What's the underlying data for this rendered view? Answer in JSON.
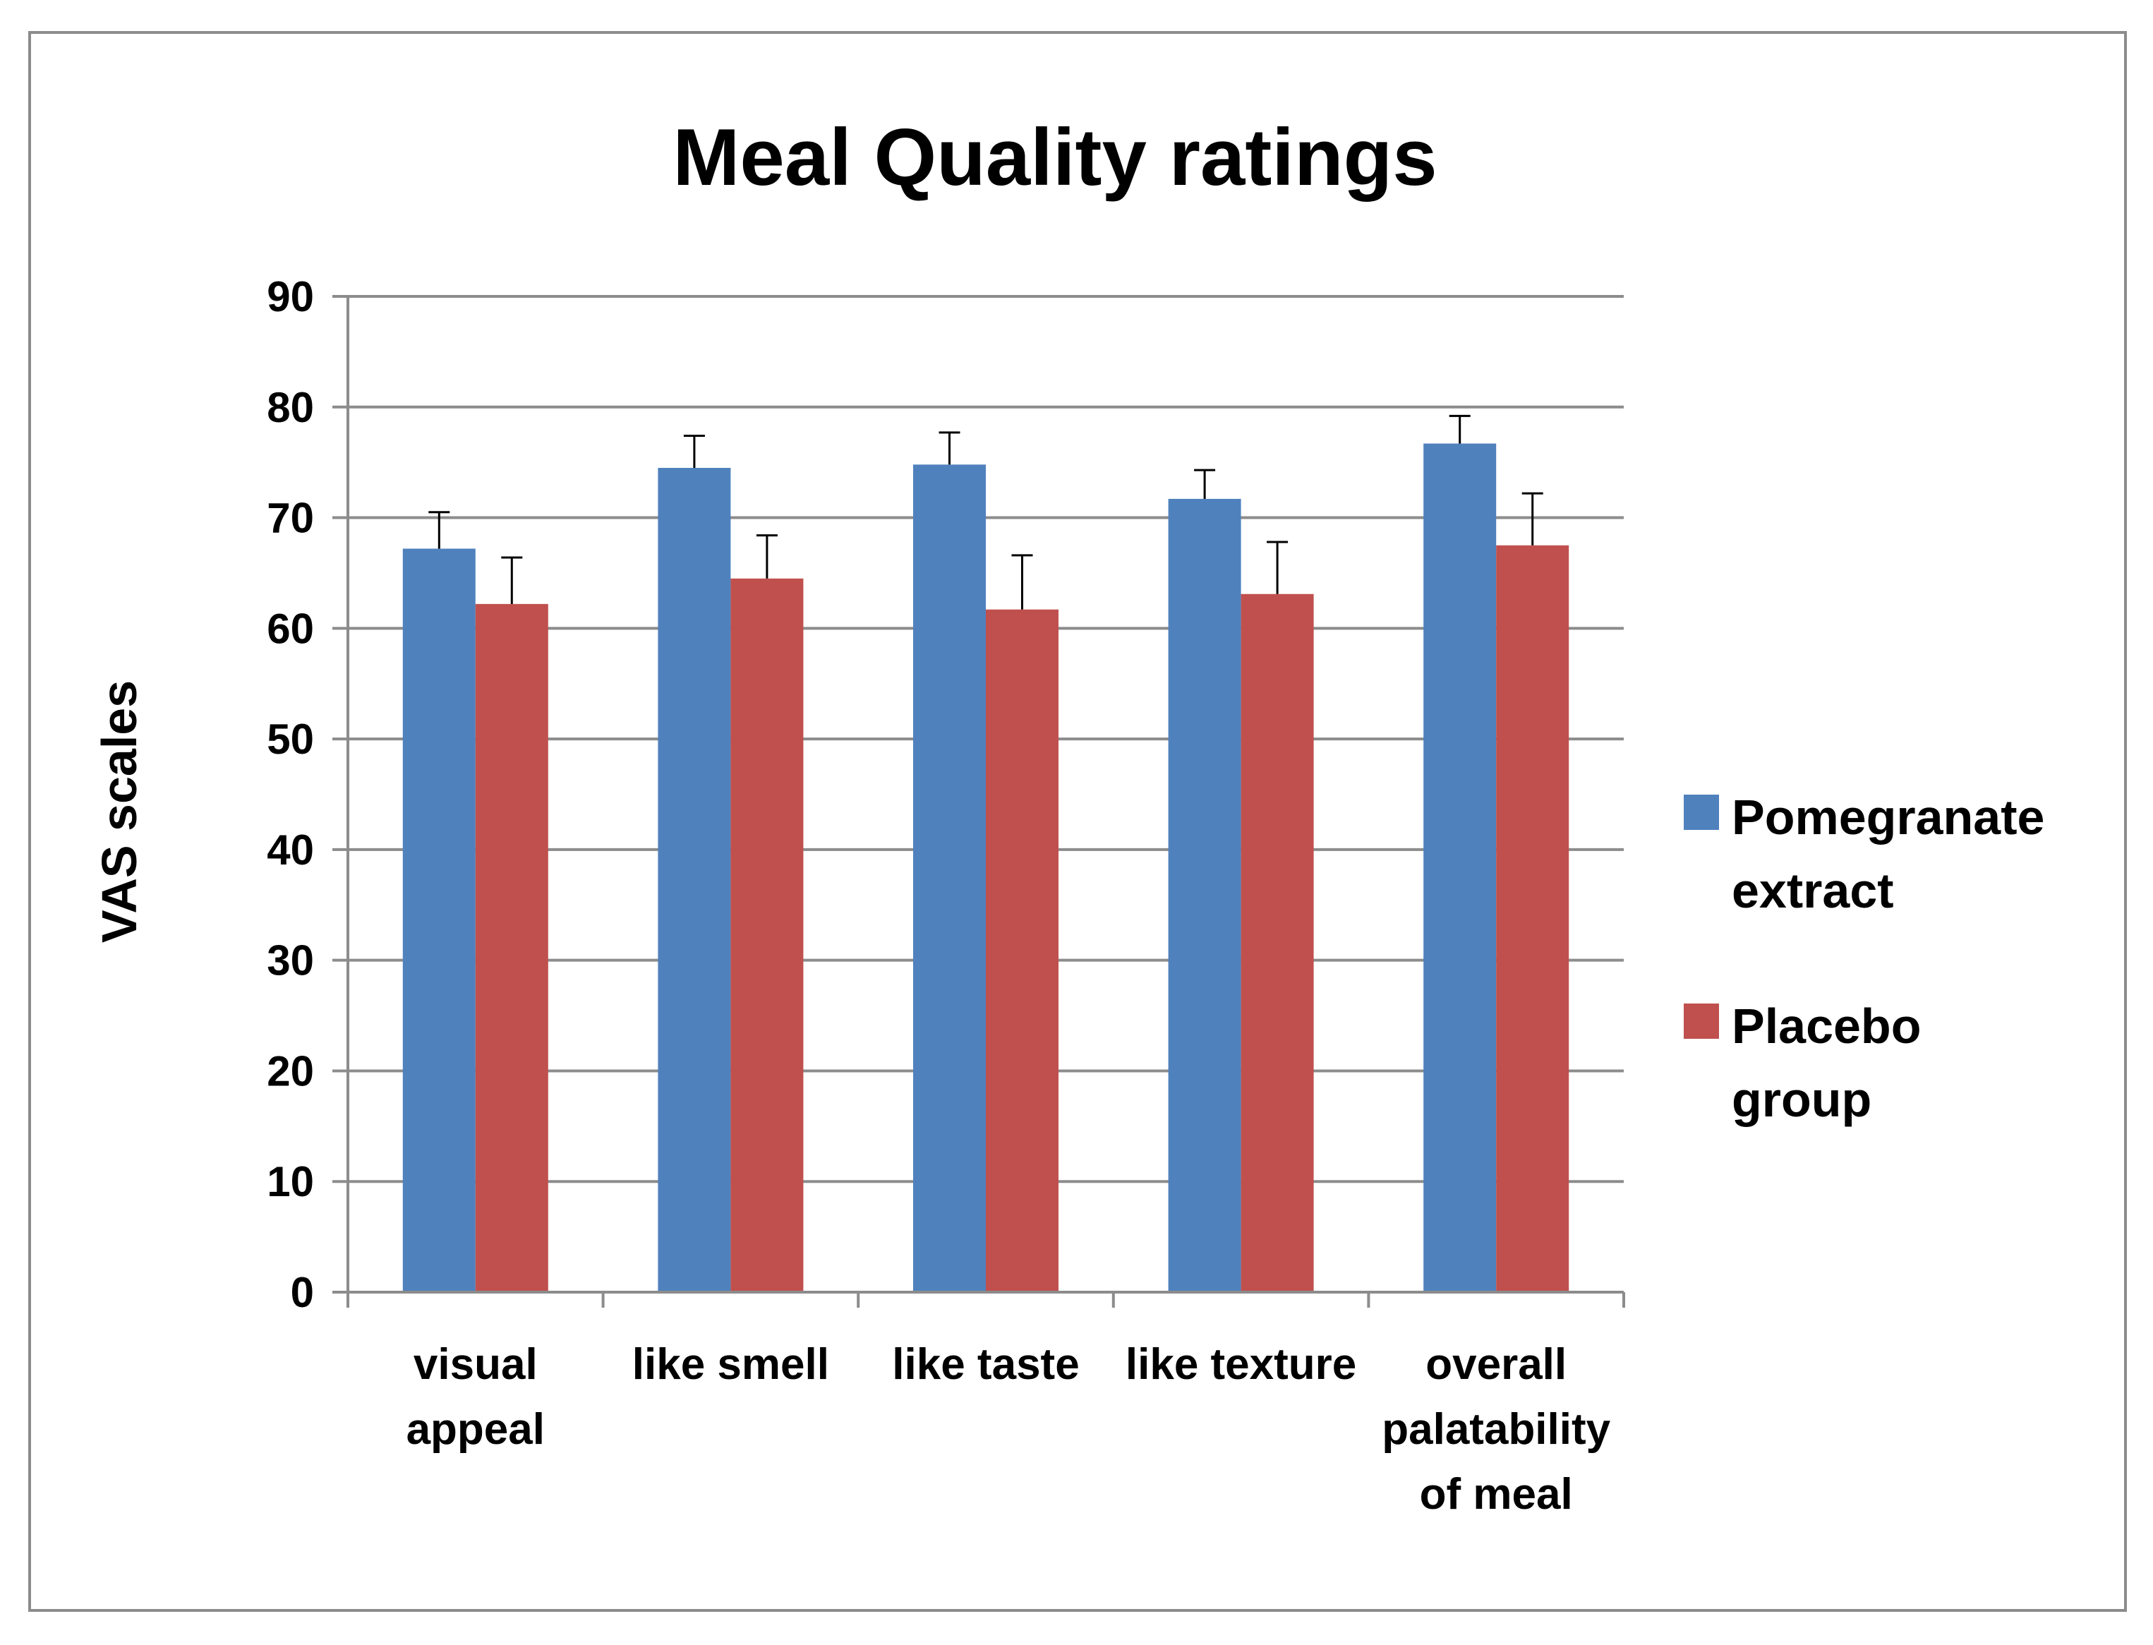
{
  "chart_data": {
    "type": "bar",
    "title": "Meal Quality ratings",
    "xlabel": "",
    "ylabel": "VAS scales",
    "ylim": [
      0,
      90
    ],
    "yticks": [
      0,
      10,
      20,
      30,
      40,
      50,
      60,
      70,
      80,
      90
    ],
    "grid": true,
    "legend_position": "right",
    "categories": [
      [
        "visual",
        "appeal"
      ],
      [
        "like smell"
      ],
      [
        "like taste"
      ],
      [
        "like texture"
      ],
      [
        "overall",
        "palatability",
        "of meal"
      ]
    ],
    "series": [
      {
        "name": [
          "Pomegranate",
          "extract"
        ],
        "color": "#4f81bd",
        "values": [
          67.2,
          74.5,
          74.8,
          71.7,
          76.7
        ],
        "errors": [
          3.3,
          2.9,
          2.9,
          2.6,
          2.5
        ]
      },
      {
        "name": [
          "Placebo",
          "group"
        ],
        "color": "#c0504d",
        "values": [
          62.2,
          64.5,
          61.7,
          63.1,
          67.5
        ],
        "errors": [
          4.2,
          3.9,
          4.9,
          4.7,
          4.7
        ]
      }
    ]
  }
}
